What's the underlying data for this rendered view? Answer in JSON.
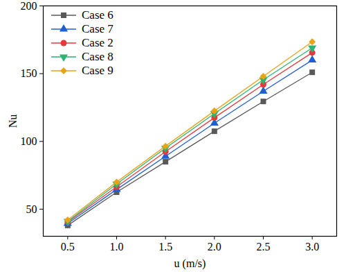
{
  "chart_data": {
    "type": "line",
    "xlabel": "u (m/s)",
    "ylabel": "Nu",
    "x": [
      0.5,
      1.0,
      1.5,
      2.0,
      2.5,
      3.0
    ],
    "series": [
      {
        "name": "Case 6",
        "color": "#595959",
        "marker": "square",
        "values": [
          38,
          62.5,
          85,
          107.5,
          129.5,
          151
        ]
      },
      {
        "name": "Case 7",
        "color": "#1f5fd6",
        "marker": "triangle",
        "values": [
          39.5,
          64.5,
          89,
          113.5,
          137,
          160
        ]
      },
      {
        "name": "Case 2",
        "color": "#e8383d",
        "marker": "circle",
        "values": [
          40.5,
          66.5,
          92.5,
          117.5,
          142,
          165.5
        ]
      },
      {
        "name": "Case 8",
        "color": "#2ab573",
        "marker": "triangle-down",
        "values": [
          41,
          68.5,
          95,
          120.5,
          145.5,
          169
        ]
      },
      {
        "name": "Case 9",
        "color": "#e8a317",
        "marker": "diamond",
        "values": [
          42,
          70,
          96.5,
          122.5,
          148,
          173.5
        ]
      }
    ],
    "xlim": [
      0.25,
      3.25
    ],
    "xticks": [
      0.5,
      {
        "value": 1,
        "label": "1.0"
      },
      {
        "value": 1.5,
        "label": "1.5"
      },
      {
        "value": 2,
        "label": "2.0"
      },
      {
        "value": 2.5,
        "label": "2.5"
      },
      {
        "value": 3,
        "label": "3.0"
      }
    ],
    "ylim": [
      30,
      200
    ],
    "yticks": [
      50,
      100,
      150,
      200
    ],
    "grid": false,
    "legend": "upper left"
  }
}
